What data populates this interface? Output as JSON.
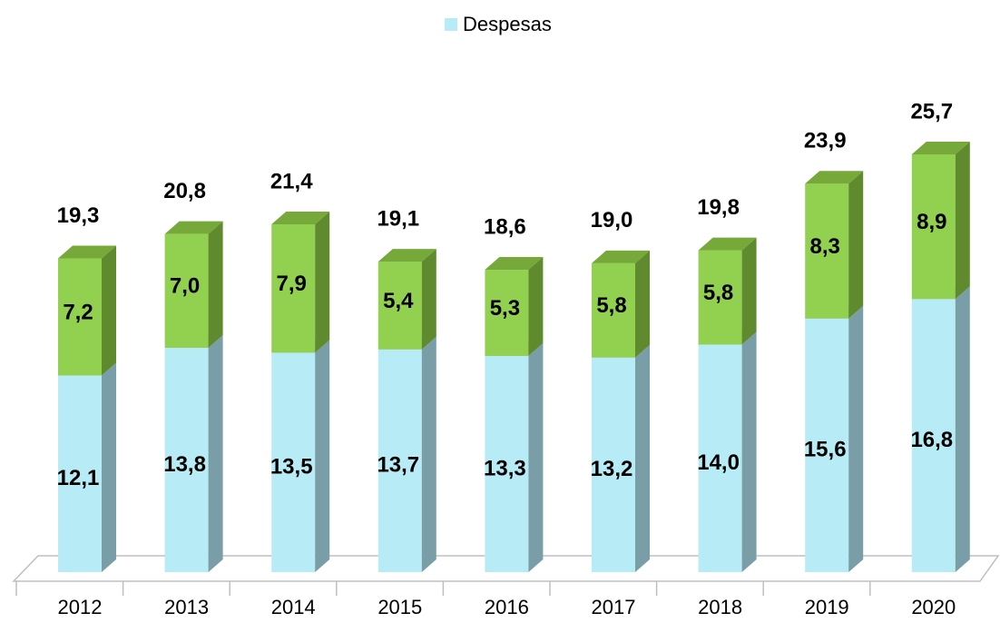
{
  "chart_data": {
    "type": "bar3d_stacked",
    "legend": "top",
    "categories": [
      "2012",
      "2013",
      "2014",
      "2015",
      "2016",
      "2017",
      "2018",
      "2019",
      "2020"
    ],
    "series": [
      {
        "name": "Despesas",
        "color": "#b7ebf5",
        "values": [
          12.1,
          13.8,
          13.5,
          13.7,
          13.3,
          13.2,
          14.0,
          15.6,
          16.8
        ],
        "value_labels": [
          "12,1",
          "13,8",
          "13,5",
          "13,7",
          "13,3",
          "13,2",
          "14,0",
          "15,6",
          "16,8"
        ]
      },
      {
        "color": "#92d050",
        "values": [
          7.2,
          7.0,
          7.9,
          5.4,
          5.3,
          5.8,
          5.8,
          8.3,
          8.9
        ],
        "value_labels": [
          "7,2",
          "7,0",
          "7,9",
          "5,4",
          "5,3",
          "5,8",
          "5,8",
          "8,3",
          "8,9"
        ]
      }
    ],
    "totals": {
      "values": [
        19.3,
        20.8,
        21.4,
        19.1,
        18.6,
        19.0,
        19.8,
        23.9,
        25.7
      ],
      "value_labels": [
        "19,3",
        "20,8",
        "21,4",
        "19,1",
        "18,6",
        "19,0",
        "19,8",
        "23,9",
        "25,7"
      ]
    },
    "ylim": [
      0,
      30
    ]
  }
}
